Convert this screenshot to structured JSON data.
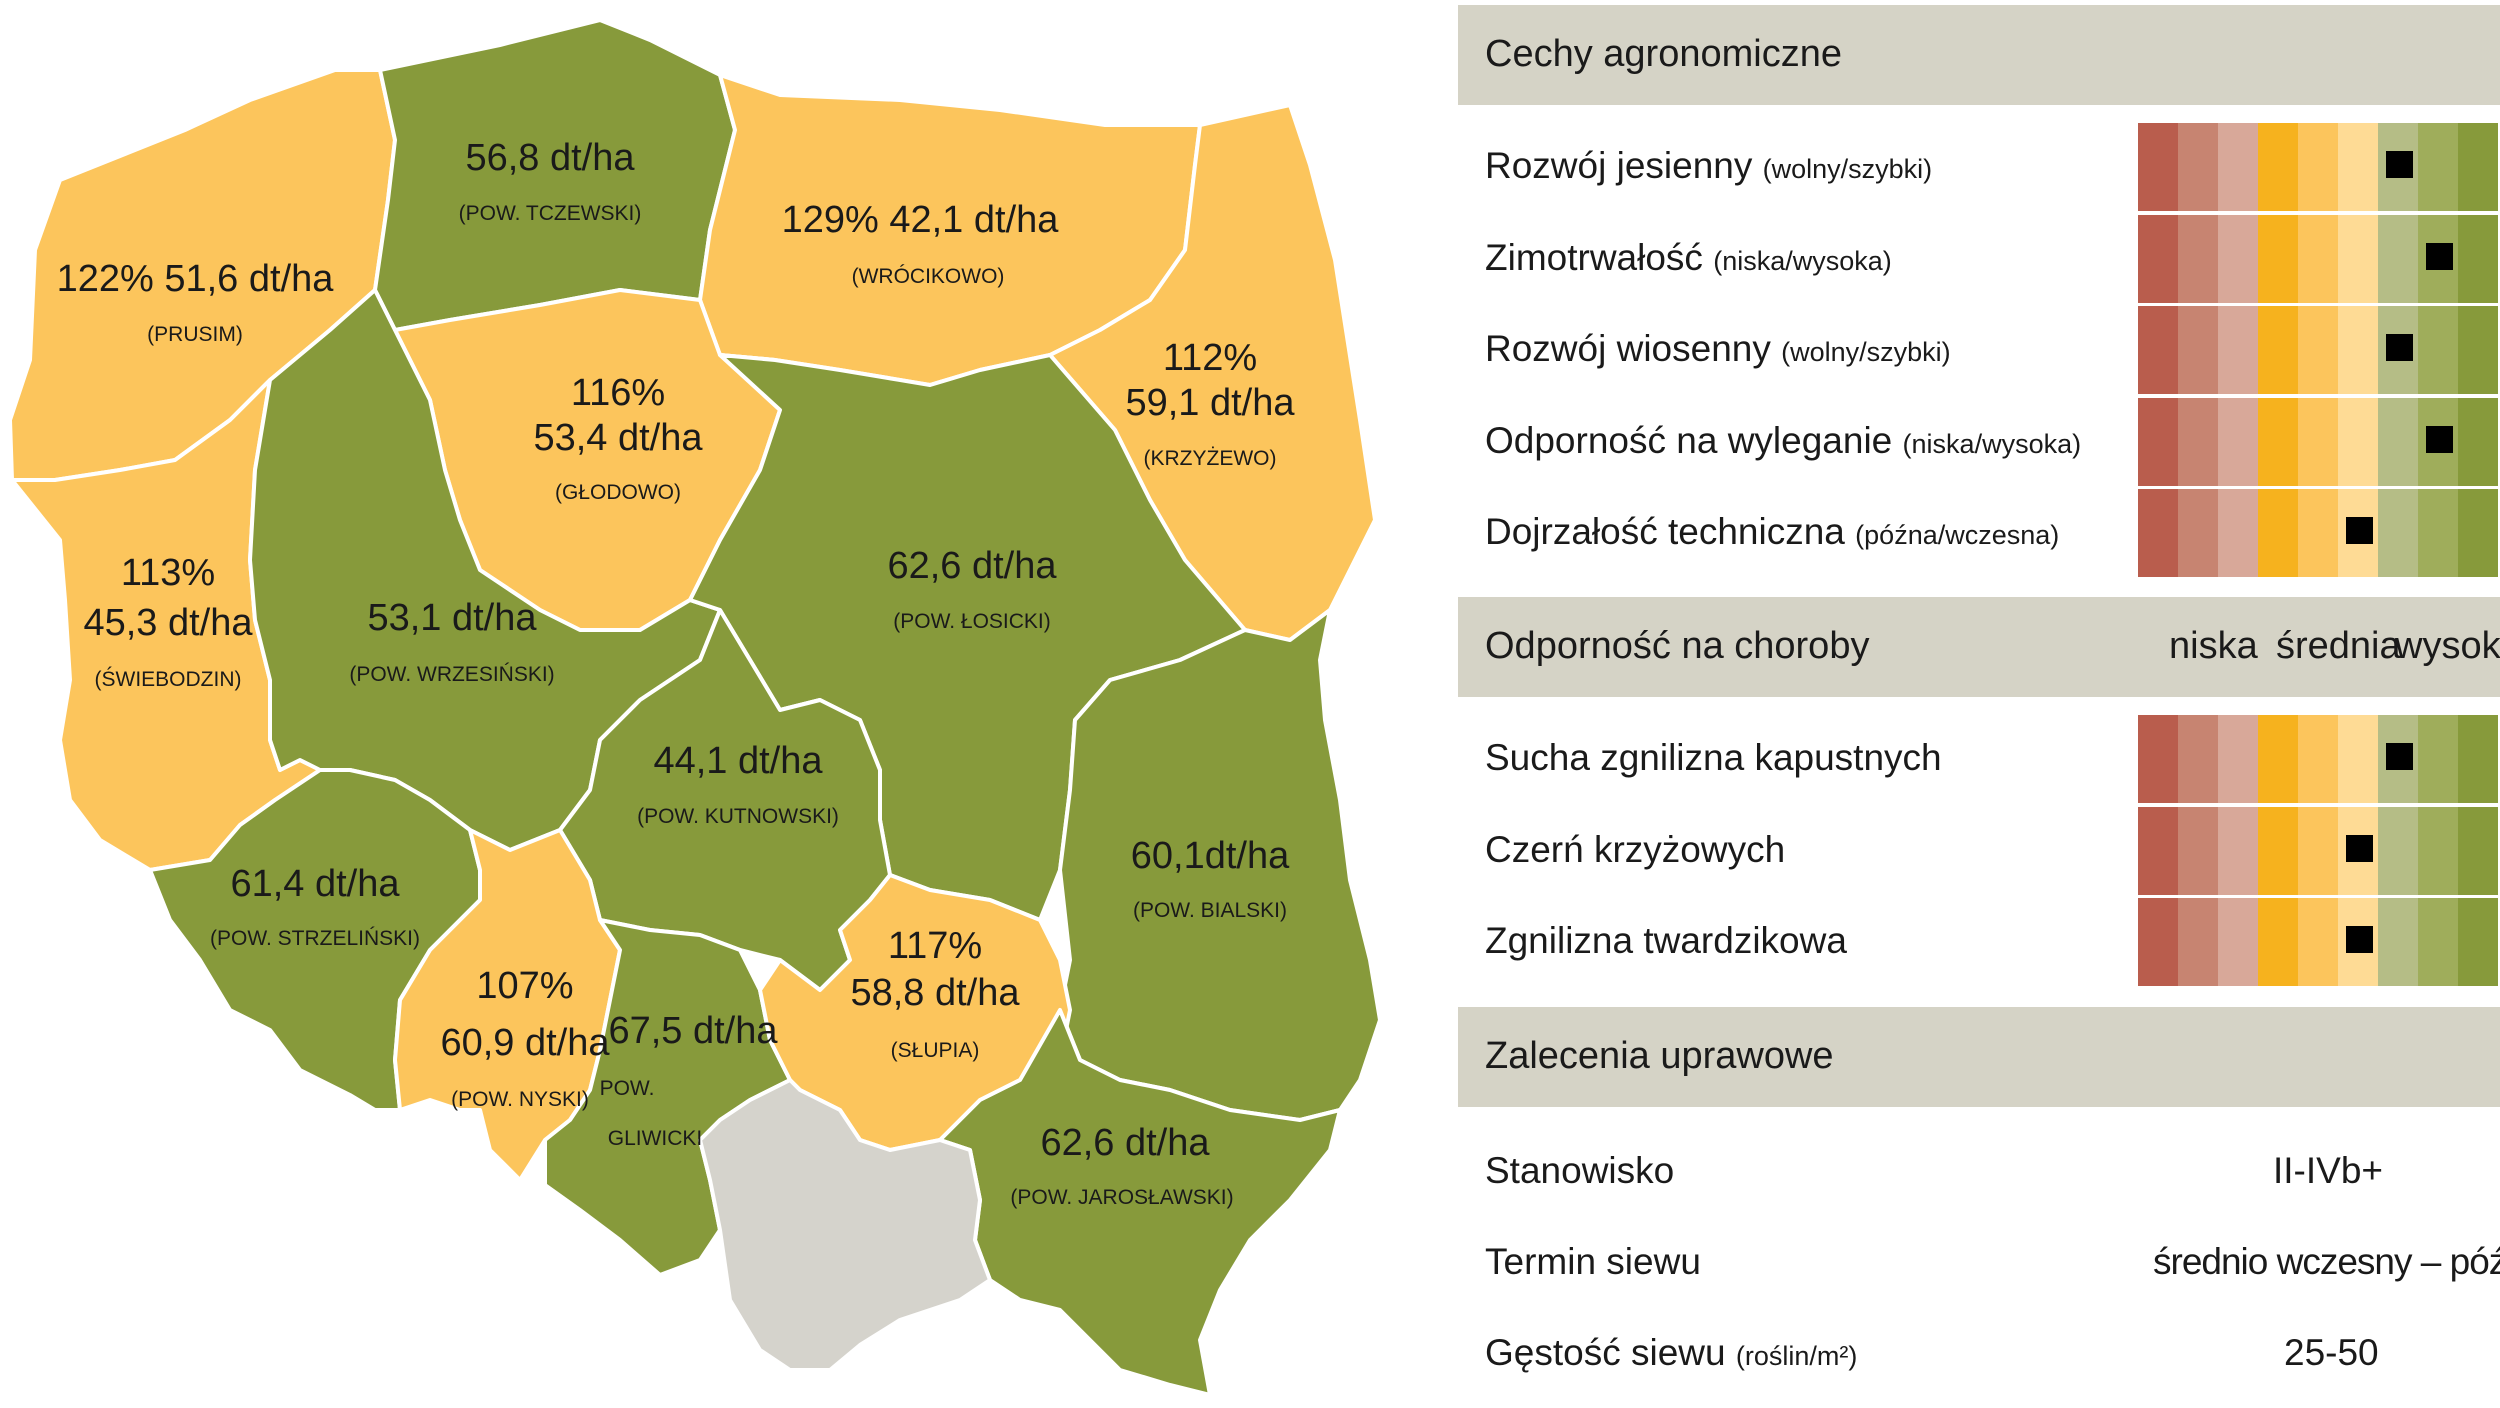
{
  "map": {
    "colors": {
      "green": "#879a3b",
      "yellow": "#fcc55c",
      "grey": "#d5d3cc",
      "border": "#ffffff"
    },
    "regions": [
      {
        "id": "zachodniopomorskie",
        "status": "yellow",
        "percent": "122%",
        "yield": "51,6 dt/ha",
        "place": "(PRUSIM)"
      },
      {
        "id": "pomorskie",
        "status": "green",
        "percent": "",
        "yield": "56,8 dt/ha",
        "place": "(POW. TCZEWSKI)"
      },
      {
        "id": "warminsko-mazurskie",
        "status": "yellow",
        "percent": "129%",
        "yield": "42,1 dt/ha",
        "place": "(WRÓCIKOWO)"
      },
      {
        "id": "podlaskie",
        "status": "yellow",
        "percent": "112%",
        "yield": "59,1 dt/ha",
        "place": "(KRZYŻEWO)"
      },
      {
        "id": "kujawsko-pomorskie",
        "status": "yellow",
        "percent": "116%",
        "yield": "53,4 dt/ha",
        "place": "(GŁODOWO)"
      },
      {
        "id": "lubuskie",
        "status": "yellow",
        "percent": "113%",
        "yield": "45,3 dt/ha",
        "place": "(ŚWIEBODZIN)"
      },
      {
        "id": "wielkopolskie",
        "status": "green",
        "percent": "",
        "yield": "53,1 dt/ha",
        "place": "(POW. WRZESIŃSKI)"
      },
      {
        "id": "mazowieckie",
        "status": "green",
        "percent": "",
        "yield": "62,6 dt/ha",
        "place": "(POW. ŁOSICKI)"
      },
      {
        "id": "lodzkie",
        "status": "green",
        "percent": "",
        "yield": "44,1 dt/ha",
        "place": "(POW. KUTNOWSKI)"
      },
      {
        "id": "dolnoslaskie",
        "status": "green",
        "percent": "",
        "yield": "61,4 dt/ha",
        "place": "(POW. STRZELIŃSKI)"
      },
      {
        "id": "lubelskie",
        "status": "green",
        "percent": "",
        "yield": "60,1dt/ha",
        "place": "(POW. BIALSKI)"
      },
      {
        "id": "opolskie",
        "status": "yellow",
        "percent": "107%",
        "yield": "60,9 dt/ha",
        "place": "(POW. NYSKI)"
      },
      {
        "id": "slaskie",
        "status": "green",
        "percent": "",
        "yield": "67,5 dt/ha",
        "place_line1": "POW.",
        "place_line2": "GLIWICKI"
      },
      {
        "id": "swietokrzyskie",
        "status": "yellow",
        "percent": "117%",
        "yield": "58,8 dt/ha",
        "place": "(SŁUPIA)"
      },
      {
        "id": "podkarpackie",
        "status": "green",
        "percent": "",
        "yield": "62,6 dt/ha",
        "place": "(POW. JAROSŁAWSKI)"
      },
      {
        "id": "malopolskie",
        "status": "grey",
        "percent": "",
        "yield": "",
        "place": ""
      }
    ]
  },
  "scale_colors": [
    "#b95d4d",
    "#c78471",
    "#d8a899",
    "#f6b21e",
    "#fcc55c",
    "#fedb95",
    "#b5bd86",
    "#9fad5b",
    "#879a3b"
  ],
  "agronomic": {
    "title": "Cechy agronomiczne",
    "rows": [
      {
        "label": "Rozwój jesienny",
        "sub": "(wolny/szybki)",
        "rating": 7
      },
      {
        "label": "Zimotrwałość",
        "sub": "(niska/wysoka)",
        "rating": 8
      },
      {
        "label": "Rozwój wiosenny",
        "sub": "(wolny/szybki)",
        "rating": 7
      },
      {
        "label": "Odporność na wyleganie",
        "sub": "(niska/wysoka)",
        "rating": 8
      },
      {
        "label": "Dojrzałość techniczna",
        "sub": "(późna/wczesna)",
        "rating": 6
      }
    ]
  },
  "disease": {
    "title": "Odporność na choroby",
    "scale_low": "niska",
    "scale_mid": "średnia",
    "scale_high": "wysoka",
    "rows": [
      {
        "label": "Sucha zgnilizna kapustnych",
        "rating": 7
      },
      {
        "label": "Czerń krzyżowych",
        "rating": 6
      },
      {
        "label": "Zgnilizna twardzikowa",
        "rating": 6
      }
    ]
  },
  "recommendations": {
    "title": "Zalecenia uprawowe",
    "rows": [
      {
        "label": "Stanowisko",
        "sub": "",
        "value": "II-IVb+"
      },
      {
        "label": "Termin siewu",
        "sub": "",
        "value": "średnio wczesny – późny"
      },
      {
        "label": "Gęstość siewu",
        "sub": "(roślin/m²)",
        "value": "25-50"
      }
    ]
  }
}
